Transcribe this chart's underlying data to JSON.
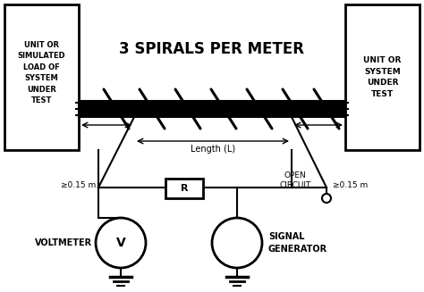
{
  "title": "3 SPIRALS PER METER",
  "left_box_text": "UNIT OR\nSIMULATED\nLOAD OF\nSYSTEM\nUNDER\nTEST",
  "right_box_text": "UNIT OR\nSYSTEM\nUNDER\nTEST",
  "length_label": "Length (L)",
  "open_circuit_label": "OPEN\nCIRCUIT",
  "voltmeter_label": "VOLTMETER",
  "signal_gen_label": "SIGNAL\nGENERATOR",
  "left_dist_label": "≥0.15 m",
  "right_dist_label": "≥0.15 m",
  "resistor_label": "R",
  "voltmeter_symbol": "V",
  "bg_color": "#ffffff",
  "line_color": "#000000",
  "figsize": [
    4.74,
    3.27
  ],
  "dpi": 100
}
